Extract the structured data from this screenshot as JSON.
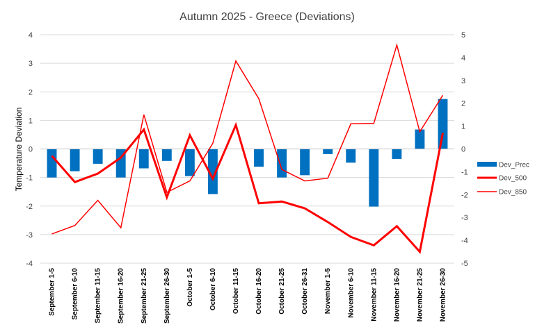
{
  "chart_data": {
    "type": "bar",
    "title": "Autumn 2025 - Greece (Deviations)",
    "ylabel": "Temperature Deviation",
    "xlabel": "",
    "categories": [
      "September 1-5",
      "September 6-10",
      "September 11-15",
      "September 16-20",
      "September 21-25",
      "September 26-30",
      "October 1-5",
      "October 6-10",
      "October 11-15",
      "October 16-20",
      "October 21-25",
      "October 26-31",
      "November 1-5",
      "November 6-10",
      "November 11-15",
      "November 16-20",
      "November 21-25",
      "November 26-30"
    ],
    "ylim": [
      -4,
      4
    ],
    "yticks": [
      4,
      3,
      2,
      1,
      0,
      -1,
      -2,
      -3,
      -4
    ],
    "y2lim": [
      -5,
      5
    ],
    "y2ticks": [
      5,
      4,
      3,
      2,
      1,
      0,
      -1,
      -2,
      -3,
      -4,
      -5
    ],
    "grid": true,
    "legend_position": "right",
    "series": [
      {
        "name": "Dev_Prec",
        "kind": "bar",
        "axis": "left",
        "color": "#0070C0",
        "values": [
          -1.0,
          -0.78,
          -0.52,
          -1.0,
          -0.68,
          -0.42,
          -0.95,
          -1.58,
          0.0,
          -0.62,
          -1.0,
          -0.92,
          -0.18,
          -0.48,
          -2.02,
          -0.35,
          0.68,
          1.75
        ]
      },
      {
        "name": "Dev_500",
        "kind": "line",
        "axis": "right",
        "color": "#FF0000",
        "width": 3,
        "values": [
          -0.3,
          -1.45,
          -1.08,
          -0.38,
          0.85,
          -2.12,
          0.6,
          -1.3,
          1.05,
          -2.38,
          -2.3,
          -2.6,
          -3.2,
          -3.85,
          -4.22,
          -3.38,
          -4.5,
          0.7
        ]
      },
      {
        "name": "Dev_850",
        "kind": "line",
        "axis": "right",
        "color": "#FF0000",
        "width": 1.5,
        "values": [
          -3.72,
          -3.35,
          -2.25,
          -3.45,
          1.5,
          -1.9,
          -1.4,
          0.25,
          3.85,
          2.2,
          -0.9,
          -1.4,
          -1.28,
          1.1,
          1.12,
          4.55,
          0.75,
          2.35
        ]
      }
    ]
  }
}
